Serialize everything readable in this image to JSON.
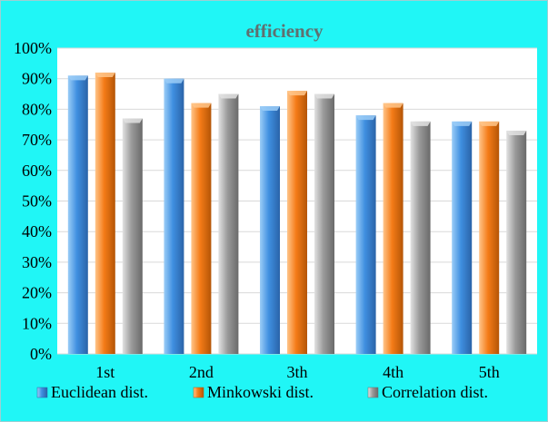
{
  "chart_data": {
    "type": "bar",
    "title": "efficiency",
    "categories": [
      "1st",
      "2nd",
      "3th",
      "4th",
      "5th"
    ],
    "series": [
      {
        "name": "Euclidean dist.",
        "values": [
          91,
          90,
          81,
          78,
          76
        ]
      },
      {
        "name": "Minkowski dist.",
        "values": [
          92,
          82,
          86,
          82,
          76
        ]
      },
      {
        "name": "Correlation dist.",
        "values": [
          77,
          85,
          85,
          76,
          73
        ]
      }
    ],
    "yticks": [
      "0%",
      "10%",
      "20%",
      "30%",
      "40%",
      "50%",
      "60%",
      "70%",
      "80%",
      "90%",
      "100%"
    ],
    "ylim": [
      0,
      100
    ],
    "grid": true,
    "legend_position": "bottom",
    "colors": {
      "background": "#20f6f6",
      "plot_area": "#ffffff",
      "gridline": "#d9d9d9",
      "title": "#5f7070",
      "series": [
        "#3f8fe0",
        "#f47b17",
        "#9a9a9a"
      ],
      "series_light": [
        "#9bcdf7",
        "#ffc58a",
        "#e2e2e2"
      ],
      "series_dark": [
        "#2a63a8",
        "#b45506",
        "#6a6a6a"
      ]
    }
  }
}
